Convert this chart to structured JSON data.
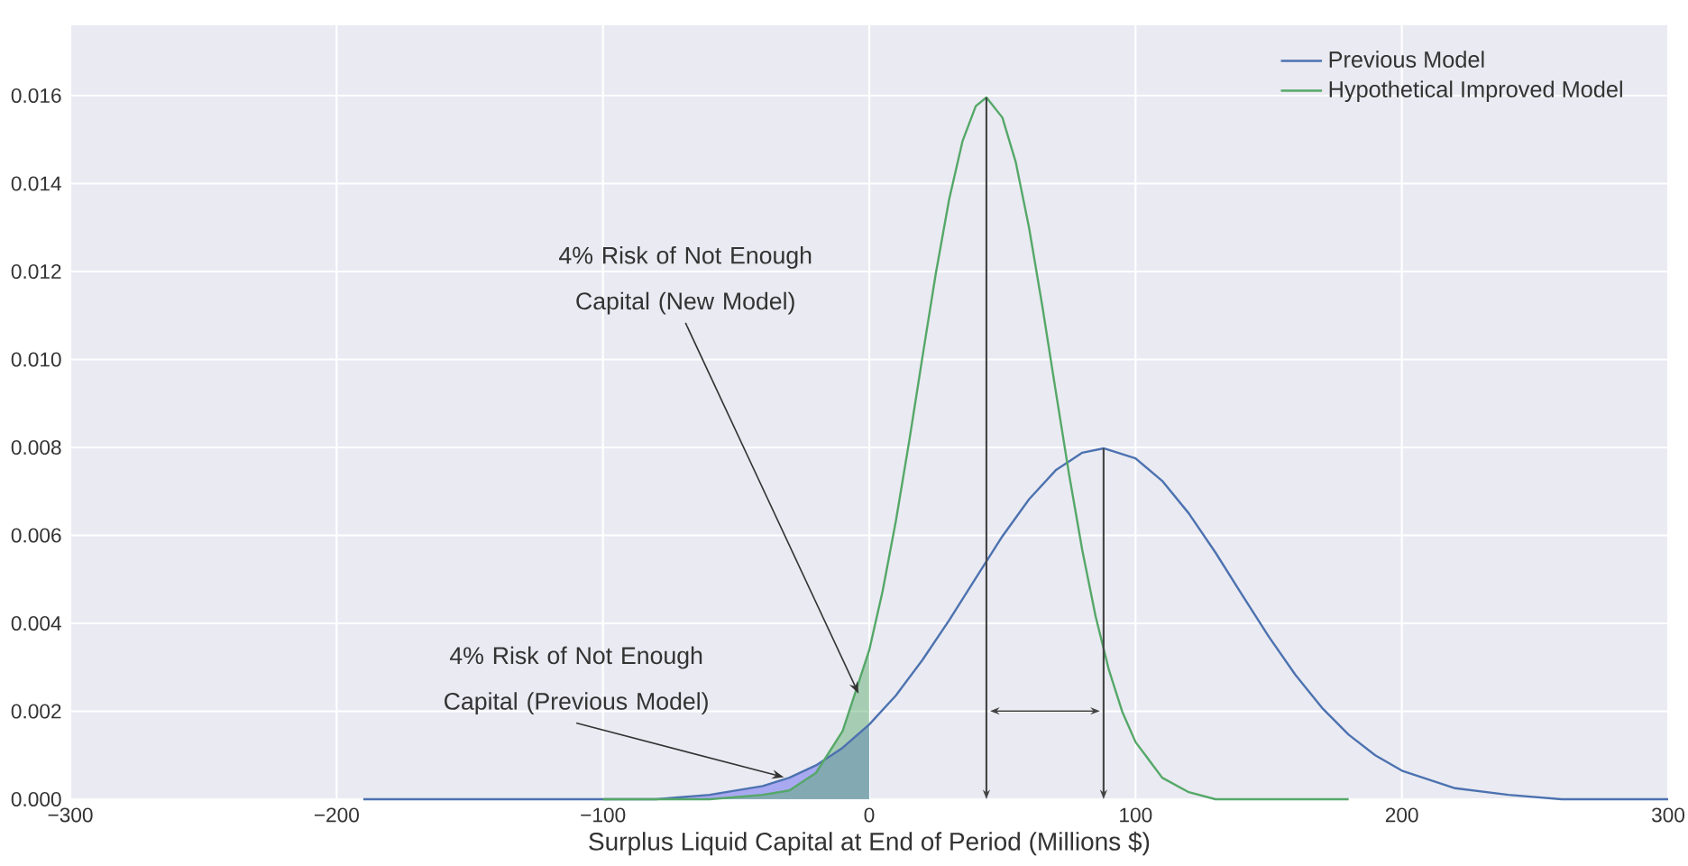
{
  "chart_data": {
    "type": "line",
    "xlabel": "Surplus Liquid Capital at End of Period (Millions $)",
    "xlim": [
      -300,
      300
    ],
    "ylim": [
      0,
      0.0176
    ],
    "xticks": [
      {
        "value": -300,
        "label": "−300"
      },
      {
        "value": -200,
        "label": "−200"
      },
      {
        "value": -100,
        "label": "−100"
      },
      0,
      100,
      200,
      300
    ],
    "yticks": [
      {
        "value": 0,
        "label": "0.000"
      },
      {
        "value": 0.002,
        "label": "0.002"
      },
      {
        "value": 0.004,
        "label": "0.004"
      },
      {
        "value": 0.006,
        "label": "0.006"
      },
      {
        "value": 0.008,
        "label": "0.008"
      },
      {
        "value": 0.01,
        "label": "0.010"
      },
      {
        "value": 0.012,
        "label": "0.012"
      },
      {
        "value": 0.014,
        "label": "0.014"
      },
      {
        "value": 0.016,
        "label": "0.016"
      }
    ],
    "grid": true,
    "legend": "top right",
    "series": [
      {
        "name": "Previous Model",
        "color": "#4c72b0",
        "x": [
          -190,
          -150,
          -100,
          -80,
          -60,
          -40,
          -30,
          -20,
          -10,
          0,
          10,
          20,
          30,
          40,
          50,
          60,
          70,
          80,
          88,
          100,
          110,
          120,
          130,
          140,
          150,
          160,
          170,
          180,
          190,
          200,
          220,
          240,
          260,
          300
        ],
        "values": [
          0,
          0,
          0,
          0,
          0.0001,
          0.0003,
          0.00049,
          0.00077,
          0.00117,
          0.0017,
          0.00236,
          0.00317,
          0.00407,
          0.00503,
          0.00598,
          0.00682,
          0.00748,
          0.00788,
          0.00798,
          0.00775,
          0.00724,
          0.0065,
          0.00561,
          0.00465,
          0.0037,
          0.00283,
          0.00208,
          0.00147,
          0.001,
          0.00065,
          0.00025,
          0.0001,
          0,
          0
        ]
      },
      {
        "name": "Hypothetical Improved Model",
        "color": "#55a868",
        "x": [
          -100,
          -60,
          -40,
          -30,
          -20,
          -10,
          0,
          5,
          10,
          15,
          20,
          25,
          30,
          35,
          40,
          44,
          50,
          55,
          60,
          65,
          70,
          75,
          80,
          85,
          90,
          95,
          100,
          110,
          120,
          130,
          140,
          180
        ],
        "values": [
          0,
          0,
          0.0001,
          0.0002,
          0.0006,
          0.00155,
          0.00339,
          0.00473,
          0.00633,
          0.00814,
          0.01007,
          0.01196,
          0.01364,
          0.01496,
          0.01576,
          0.01596,
          0.0155,
          0.01449,
          0.013,
          0.01121,
          0.00929,
          0.0074,
          0.00566,
          0.00416,
          0.00294,
          0.00199,
          0.0013,
          0.00049,
          0.00016,
          0,
          0,
          0
        ]
      },
      {
        "type": "area",
        "color": "#5a5af0",
        "x": [
          -190,
          -150,
          -100,
          -80,
          -60,
          -40,
          -30,
          -20,
          -10,
          0
        ],
        "values": [
          0,
          0,
          0,
          0,
          0.0001,
          0.0003,
          0.00049,
          0.00077,
          0.00117,
          0.0017
        ]
      },
      {
        "type": "area",
        "color": "#55a868",
        "x": [
          -100,
          -60,
          -40,
          -30,
          -20,
          -10,
          0
        ],
        "values": [
          0,
          0,
          0.0001,
          0.0002,
          0.0006,
          0.00155,
          0.00339
        ]
      }
    ],
    "ref_lines": [
      {
        "axis": "x",
        "value": 44,
        "color": "#444444"
      },
      {
        "axis": "x",
        "value": 88,
        "color": "#444444"
      }
    ],
    "annotations": [
      {
        "text": "4% Risk of Not Enough Capital (New Model)",
        "x": -4,
        "y": 0.0024
      },
      {
        "text": "4% Risk of Not Enough Capital (Previous Model)",
        "x": -32,
        "y": 0.0005
      }
    ]
  }
}
